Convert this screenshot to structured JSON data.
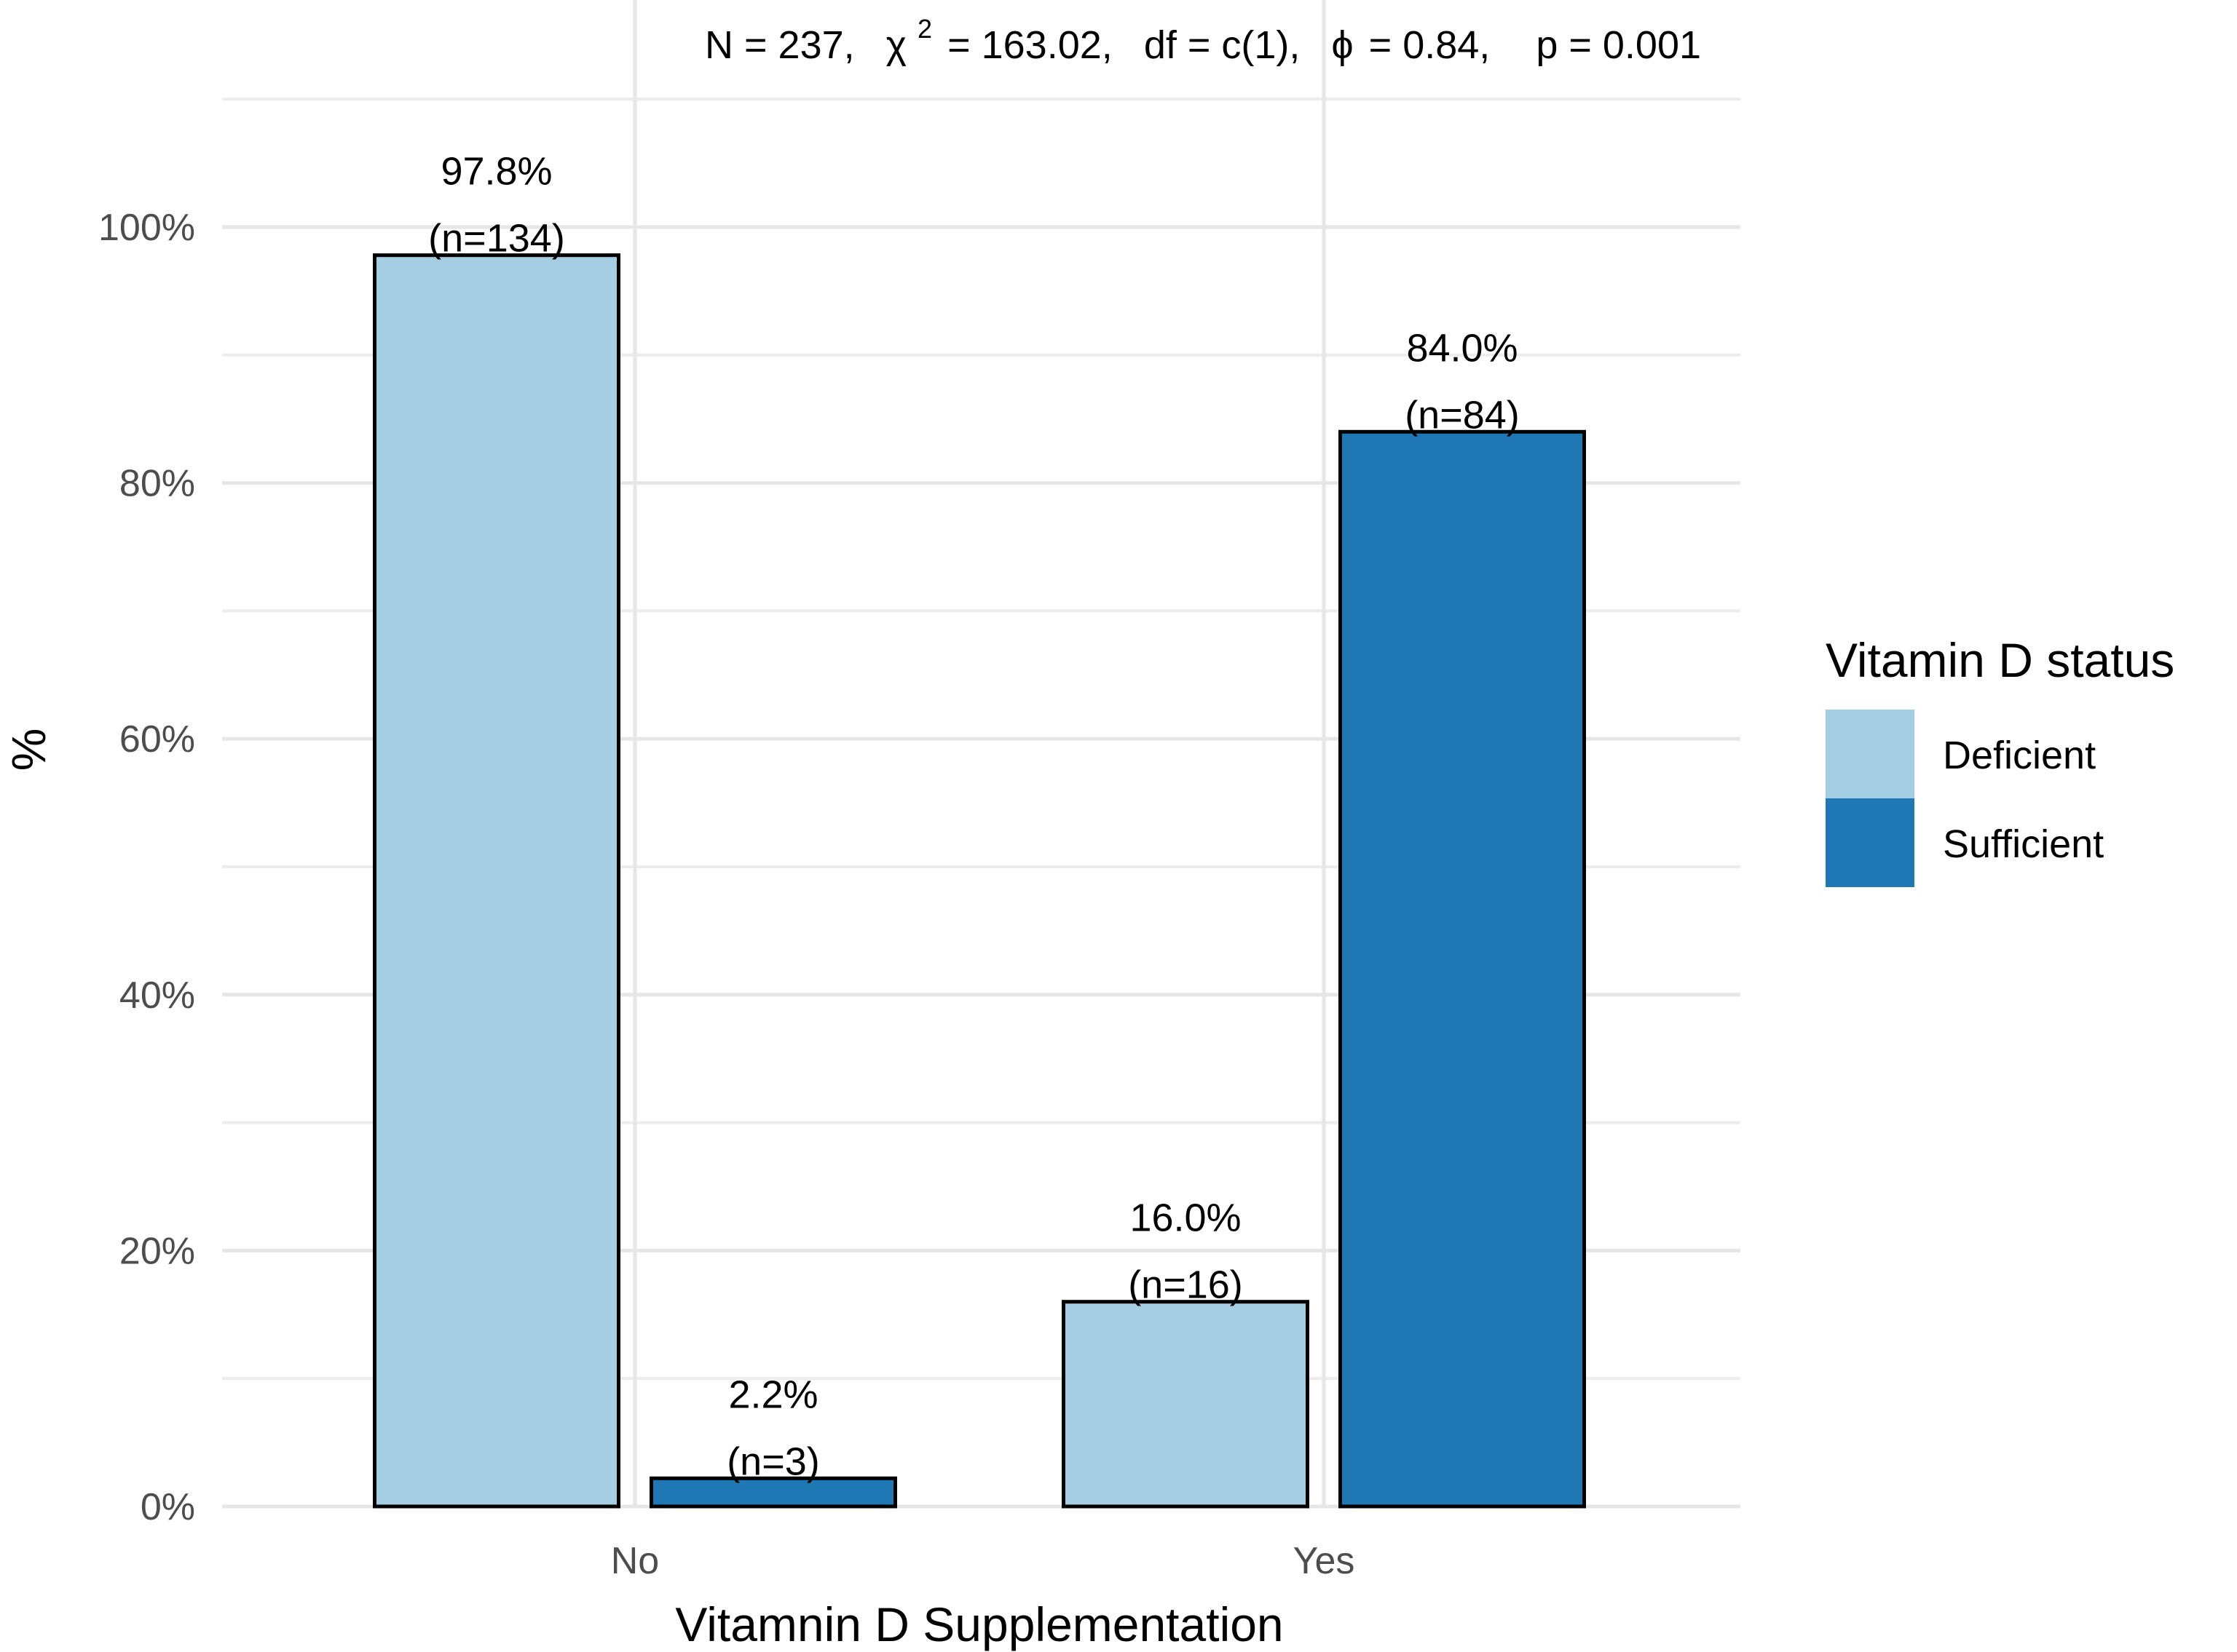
{
  "chart_data": {
    "type": "bar",
    "subtitle_parts": {
      "n": "N = 237,",
      "chi_symbol": "χ",
      "chi_sup": "2",
      "chi_value": "= 163.02,",
      "df": "df = c(1),",
      "phi_symbol": "ϕ",
      "phi_value": "= 0.84,",
      "p": "p = 0.001"
    },
    "categories": [
      "No",
      "Yes"
    ],
    "series": [
      {
        "name": "Deficient",
        "color": "#a6cee3",
        "values": [
          97.8,
          16.0
        ],
        "labels": [
          "97.8%",
          "16.0%"
        ],
        "counts": [
          "(n=134)",
          "(n=16)"
        ]
      },
      {
        "name": "Sufficient",
        "color": "#1f78b4",
        "values": [
          2.2,
          84.0
        ],
        "labels": [
          "2.2%",
          "84.0%"
        ],
        "counts": [
          "(n=3)",
          "(n=84)"
        ]
      }
    ],
    "xlabel": "Vitamnin D Supplementation",
    "ylabel": "%",
    "ylim": [
      0,
      110
    ],
    "yticks": [
      0,
      20,
      40,
      60,
      80,
      100
    ],
    "ytick_labels": [
      "0%",
      "20%",
      "40%",
      "60%",
      "80%",
      "100%"
    ],
    "legend": {
      "title": "Vitamin D status",
      "position": "right"
    }
  }
}
